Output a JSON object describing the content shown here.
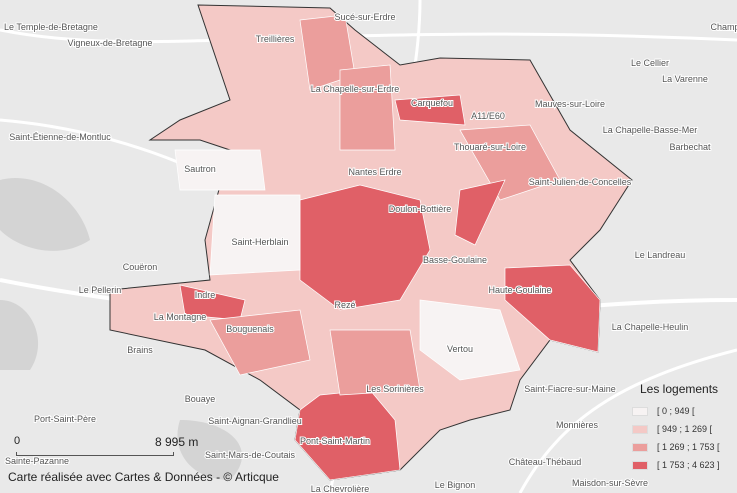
{
  "legend": {
    "title": "Les logements",
    "classes": [
      {
        "label": "[ 0 ; 949 [",
        "color": "#f7f3f3"
      },
      {
        "label": "[ 949 ; 1 269 [",
        "color": "#f4c9c6"
      },
      {
        "label": "[ 1 269 ; 1 753 [",
        "color": "#eb9e9c"
      },
      {
        "label": "[ 1 753 ; 4 623 ]",
        "color": "#e06067"
      }
    ]
  },
  "scale": {
    "zero": "0",
    "distance": "8 995 m"
  },
  "credit": "Carte réalisée avec Cartes & Données - © Articque",
  "places": [
    "Le Temple-de-Bretagne",
    "Vigneux-de-Bretagne",
    "Treillières",
    "Sucé-sur-Erdre",
    "Le Cellier",
    "La Varenne",
    "Mauves-sur-Loire",
    "La Chapelle-Basse-Mer",
    "Barbechat",
    "Saint-Étienne-de-Montluc",
    "Sautron",
    "La Chapelle-sur-Erdre",
    "Carquefou",
    "A11/E60",
    "Thouaré-sur-Loire",
    "Saint-Julien-de-Concelles",
    "Nantes Erdre",
    "Doulon-Bottière",
    "Saint-Herblain",
    "Couëron",
    "Basse-Goulaine",
    "Haute-Goulaine",
    "Le Landreau",
    "Le Pellerin",
    "Indre",
    "La Montagne",
    "Bouguenais",
    "Rezé",
    "Vertou",
    "La Chapelle-Heulin",
    "Brains",
    "Bouaye",
    "Les Sorinières",
    "Saint-Fiacre-sur-Maine",
    "Port-Saint-Père",
    "Saint-Aignan-Grandlieu",
    "Pont-Saint-Martin",
    "Château-Thébaud",
    "Saint-Mars-de-Coutais",
    "Sainte-Pazanne",
    "Monnières",
    "Maisdon-sur-Sèvre",
    "Le Bignon",
    "La Chevrolière",
    "Champ"
  ]
}
